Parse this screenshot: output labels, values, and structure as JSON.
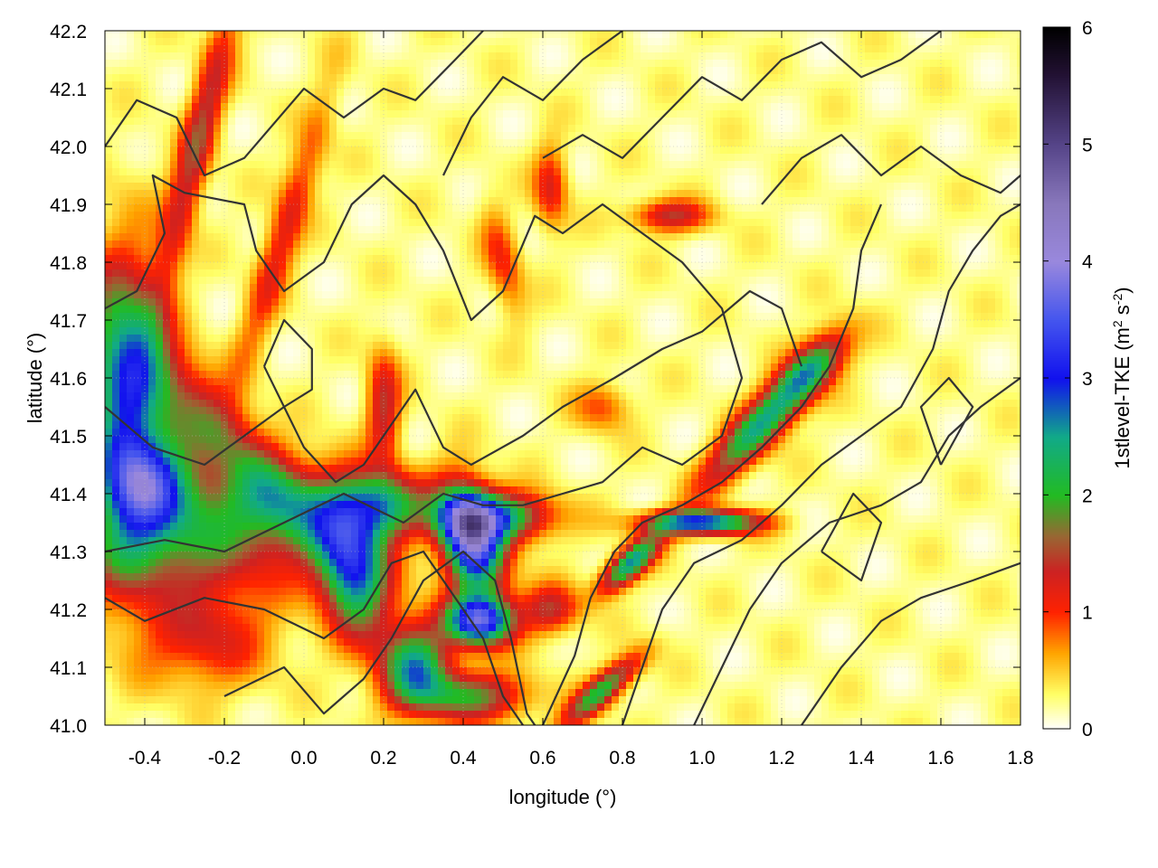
{
  "chart_data": {
    "type": "heatmap",
    "title": "",
    "xlabel": "longitude (°)",
    "ylabel": "latitude (°)",
    "xlim": [
      -0.5,
      1.8
    ],
    "ylim": [
      41.0,
      42.2
    ],
    "x_ticks": [
      "-0.4",
      "-0.2",
      "0.0",
      "0.2",
      "0.4",
      "0.6",
      "0.8",
      "1.0",
      "1.2",
      "1.4",
      "1.6",
      "1.8"
    ],
    "x_tick_values": [
      -0.4,
      -0.2,
      0.0,
      0.2,
      0.4,
      0.6,
      0.8,
      1.0,
      1.2,
      1.4,
      1.6,
      1.8
    ],
    "y_ticks": [
      "41.0",
      "41.1",
      "41.2",
      "41.3",
      "41.4",
      "41.5",
      "41.6",
      "41.7",
      "41.8",
      "41.9",
      "42.0",
      "42.1",
      "42.2"
    ],
    "y_tick_values": [
      41.0,
      41.1,
      41.2,
      41.3,
      41.4,
      41.5,
      41.6,
      41.7,
      41.8,
      41.9,
      42.0,
      42.1,
      42.2
    ],
    "grid": true,
    "colorbar": {
      "label_main": "1stlevel-TKE (m",
      "label_sup1": "2",
      "label_mid": " s",
      "label_sup2": "-2",
      "label_end": ")",
      "range": [
        0,
        6
      ],
      "ticks": [
        "0",
        "1",
        "2",
        "3",
        "4",
        "5",
        "6"
      ],
      "tick_values": [
        0,
        1,
        2,
        3,
        4,
        5,
        6
      ],
      "colors": [
        {
          "v": 0.0,
          "c": "#ffffff"
        },
        {
          "v": 0.3,
          "c": "#ffff66"
        },
        {
          "v": 0.65,
          "c": "#ffa500"
        },
        {
          "v": 1.0,
          "c": "#ff2200"
        },
        {
          "v": 1.35,
          "c": "#cc2222"
        },
        {
          "v": 1.65,
          "c": "#996633"
        },
        {
          "v": 2.0,
          "c": "#22bb22"
        },
        {
          "v": 2.5,
          "c": "#11aa88"
        },
        {
          "v": 3.0,
          "c": "#1111ee"
        },
        {
          "v": 3.5,
          "c": "#4455ee"
        },
        {
          "v": 4.0,
          "c": "#9988dd"
        },
        {
          "v": 4.5,
          "c": "#8877bb"
        },
        {
          "v": 5.0,
          "c": "#554488"
        },
        {
          "v": 5.6,
          "c": "#221133"
        },
        {
          "v": 6.0,
          "c": "#000000"
        }
      ]
    },
    "features": [
      {
        "lon": -0.45,
        "lat": 41.55,
        "sx": 0.07,
        "sy": 0.17,
        "ang": 0,
        "amp": 2.4
      },
      {
        "lon": -0.38,
        "lat": 41.42,
        "sx": 0.08,
        "sy": 0.06,
        "ang": 0,
        "amp": 2.2
      },
      {
        "lon": -0.2,
        "lat": 41.5,
        "sx": 0.25,
        "sy": 0.05,
        "ang": -35,
        "amp": 1.3
      },
      {
        "lon": -0.3,
        "lat": 41.3,
        "sx": 0.2,
        "sy": 0.06,
        "ang": 0,
        "amp": 1.3
      },
      {
        "lon": -0.1,
        "lat": 41.38,
        "sx": 0.15,
        "sy": 0.05,
        "ang": 0,
        "amp": 1.2
      },
      {
        "lon": -0.25,
        "lat": 41.15,
        "sx": 0.12,
        "sy": 0.06,
        "ang": 0,
        "amp": 1.0
      },
      {
        "lon": 0.12,
        "lat": 41.28,
        "sx": 0.06,
        "sy": 0.09,
        "ang": 20,
        "amp": 2.5
      },
      {
        "lon": 0.2,
        "lat": 41.38,
        "sx": 0.07,
        "sy": 0.04,
        "ang": 0,
        "amp": 2.0
      },
      {
        "lon": 0.42,
        "lat": 41.32,
        "sx": 0.05,
        "sy": 0.07,
        "ang": 30,
        "amp": 3.6
      },
      {
        "lon": 0.48,
        "lat": 41.36,
        "sx": 0.1,
        "sy": 0.03,
        "ang": 0,
        "amp": 2.2
      },
      {
        "lon": 0.44,
        "lat": 41.18,
        "sx": 0.06,
        "sy": 0.03,
        "ang": 0,
        "amp": 3.2
      },
      {
        "lon": 0.28,
        "lat": 41.1,
        "sx": 0.06,
        "sy": 0.05,
        "ang": 0,
        "amp": 2.2
      },
      {
        "lon": 0.42,
        "lat": 41.05,
        "sx": 0.1,
        "sy": 0.03,
        "ang": 0,
        "amp": 1.6
      },
      {
        "lon": 0.82,
        "lat": 41.28,
        "sx": 0.06,
        "sy": 0.02,
        "ang": 30,
        "amp": 2.4
      },
      {
        "lon": 1.0,
        "lat": 41.35,
        "sx": 0.1,
        "sy": 0.015,
        "ang": 0,
        "amp": 2.8
      },
      {
        "lon": 1.15,
        "lat": 41.52,
        "sx": 0.12,
        "sy": 0.03,
        "ang": 35,
        "amp": 2.2
      },
      {
        "lon": 1.28,
        "lat": 41.62,
        "sx": 0.07,
        "sy": 0.03,
        "ang": 30,
        "amp": 1.5
      },
      {
        "lon": 0.75,
        "lat": 41.06,
        "sx": 0.08,
        "sy": 0.02,
        "ang": 30,
        "amp": 1.9
      },
      {
        "lon": 0.62,
        "lat": 41.2,
        "sx": 0.05,
        "sy": 0.03,
        "ang": 0,
        "amp": 1.2
      },
      {
        "lon": -0.27,
        "lat": 42.0,
        "sx": 0.03,
        "sy": 0.2,
        "ang": -20,
        "amp": 1.3
      },
      {
        "lon": -0.05,
        "lat": 41.85,
        "sx": 0.03,
        "sy": 0.18,
        "ang": -25,
        "amp": 1.0
      },
      {
        "lon": 0.2,
        "lat": 41.55,
        "sx": 0.03,
        "sy": 0.07,
        "ang": 0,
        "amp": 1.2
      },
      {
        "lon": 0.62,
        "lat": 41.93,
        "sx": 0.03,
        "sy": 0.05,
        "ang": 0,
        "amp": 1.0
      },
      {
        "lon": 0.92,
        "lat": 41.88,
        "sx": 0.07,
        "sy": 0.02,
        "ang": 0,
        "amp": 1.2
      },
      {
        "lon": 0.5,
        "lat": 41.8,
        "sx": 0.03,
        "sy": 0.07,
        "ang": 20,
        "amp": 0.8
      },
      {
        "lon": 0.75,
        "lat": 41.55,
        "sx": 0.05,
        "sy": 0.03,
        "ang": 0,
        "amp": 0.7
      }
    ],
    "contours": [
      [
        [
          -0.5,
          42.0
        ],
        [
          -0.42,
          42.08
        ],
        [
          -0.32,
          42.05
        ],
        [
          -0.25,
          41.95
        ],
        [
          -0.15,
          41.98
        ],
        [
          0.0,
          42.1
        ],
        [
          0.1,
          42.05
        ],
        [
          0.2,
          42.1
        ],
        [
          0.28,
          42.08
        ],
        [
          0.38,
          42.15
        ],
        [
          0.45,
          42.2
        ]
      ],
      [
        [
          -0.5,
          41.72
        ],
        [
          -0.42,
          41.75
        ],
        [
          -0.35,
          41.85
        ],
        [
          -0.38,
          41.95
        ],
        [
          -0.3,
          41.92
        ],
        [
          -0.15,
          41.9
        ],
        [
          -0.12,
          41.82
        ],
        [
          -0.05,
          41.75
        ],
        [
          0.05,
          41.8
        ],
        [
          0.12,
          41.9
        ],
        [
          0.2,
          41.95
        ],
        [
          0.28,
          41.9
        ],
        [
          0.35,
          41.82
        ],
        [
          0.42,
          41.7
        ],
        [
          0.5,
          41.75
        ],
        [
          0.58,
          41.88
        ],
        [
          0.65,
          41.85
        ],
        [
          0.75,
          41.9
        ],
        [
          0.85,
          41.85
        ],
        [
          0.95,
          41.8
        ],
        [
          1.05,
          41.72
        ],
        [
          1.1,
          41.6
        ],
        [
          1.05,
          41.5
        ],
        [
          0.95,
          41.45
        ],
        [
          0.85,
          41.48
        ],
        [
          0.75,
          41.42
        ],
        [
          0.65,
          41.4
        ],
        [
          0.55,
          41.38
        ],
        [
          0.45,
          41.38
        ],
        [
          0.35,
          41.4
        ],
        [
          0.25,
          41.35
        ],
        [
          0.1,
          41.4
        ],
        [
          -0.05,
          41.35
        ],
        [
          -0.2,
          41.3
        ],
        [
          -0.35,
          41.32
        ],
        [
          -0.5,
          41.3
        ]
      ],
      [
        [
          -0.5,
          41.22
        ],
        [
          -0.4,
          41.18
        ],
        [
          -0.25,
          41.22
        ],
        [
          -0.1,
          41.2
        ],
        [
          0.05,
          41.15
        ],
        [
          0.15,
          41.2
        ],
        [
          0.22,
          41.28
        ],
        [
          0.3,
          41.3
        ],
        [
          0.38,
          41.22
        ],
        [
          0.45,
          41.15
        ],
        [
          0.5,
          41.05
        ],
        [
          0.55,
          41.0
        ]
      ],
      [
        [
          -0.5,
          41.55
        ],
        [
          -0.38,
          41.48
        ],
        [
          -0.25,
          41.45
        ],
        [
          -0.15,
          41.5
        ],
        [
          -0.05,
          41.55
        ],
        [
          0.0,
          41.48
        ],
        [
          0.08,
          41.42
        ],
        [
          0.15,
          41.45
        ],
        [
          0.2,
          41.5
        ],
        [
          0.28,
          41.58
        ],
        [
          0.35,
          41.48
        ],
        [
          0.42,
          41.45
        ],
        [
          0.55,
          41.5
        ],
        [
          0.65,
          41.55
        ],
        [
          0.78,
          41.6
        ],
        [
          0.9,
          41.65
        ],
        [
          1.0,
          41.68
        ],
        [
          1.12,
          41.75
        ],
        [
          1.2,
          41.72
        ],
        [
          1.25,
          41.62
        ]
      ],
      [
        [
          -0.2,
          41.05
        ],
        [
          -0.05,
          41.1
        ],
        [
          0.05,
          41.02
        ],
        [
          0.15,
          41.08
        ],
        [
          0.22,
          41.15
        ],
        [
          0.3,
          41.25
        ],
        [
          0.4,
          41.3
        ],
        [
          0.48,
          41.25
        ],
        [
          0.52,
          41.15
        ],
        [
          0.56,
          41.02
        ],
        [
          0.58,
          41.0
        ]
      ],
      [
        [
          0.6,
          41.0
        ],
        [
          0.68,
          41.12
        ],
        [
          0.72,
          41.22
        ],
        [
          0.78,
          41.3
        ],
        [
          0.85,
          41.35
        ],
        [
          0.95,
          41.38
        ],
        [
          1.05,
          41.42
        ],
        [
          1.15,
          41.48
        ],
        [
          1.25,
          41.55
        ],
        [
          1.32,
          41.62
        ],
        [
          1.38,
          41.72
        ],
        [
          1.4,
          41.82
        ],
        [
          1.45,
          41.9
        ]
      ],
      [
        [
          0.8,
          41.0
        ],
        [
          0.85,
          41.1
        ],
        [
          0.9,
          41.2
        ],
        [
          0.98,
          41.28
        ],
        [
          1.1,
          41.32
        ],
        [
          1.2,
          41.38
        ],
        [
          1.3,
          41.45
        ],
        [
          1.4,
          41.5
        ],
        [
          1.5,
          41.55
        ],
        [
          1.58,
          41.65
        ],
        [
          1.62,
          41.75
        ],
        [
          1.68,
          41.82
        ],
        [
          1.75,
          41.88
        ],
        [
          1.8,
          41.9
        ]
      ],
      [
        [
          0.98,
          41.0
        ],
        [
          1.05,
          41.1
        ],
        [
          1.12,
          41.2
        ],
        [
          1.2,
          41.28
        ],
        [
          1.32,
          41.35
        ],
        [
          1.45,
          41.38
        ],
        [
          1.55,
          41.42
        ],
        [
          1.62,
          41.5
        ],
        [
          1.7,
          41.55
        ],
        [
          1.8,
          41.6
        ]
      ],
      [
        [
          1.25,
          41.0
        ],
        [
          1.35,
          41.1
        ],
        [
          1.45,
          41.18
        ],
        [
          1.55,
          41.22
        ],
        [
          1.68,
          41.25
        ],
        [
          1.8,
          41.28
        ]
      ],
      [
        [
          0.35,
          41.95
        ],
        [
          0.42,
          42.05
        ],
        [
          0.5,
          42.12
        ],
        [
          0.6,
          42.08
        ],
        [
          0.7,
          42.15
        ],
        [
          0.8,
          42.2
        ]
      ],
      [
        [
          0.6,
          41.98
        ],
        [
          0.7,
          42.02
        ],
        [
          0.8,
          41.98
        ],
        [
          0.9,
          42.05
        ],
        [
          1.0,
          42.12
        ],
        [
          1.1,
          42.08
        ],
        [
          1.2,
          42.15
        ],
        [
          1.3,
          42.18
        ],
        [
          1.4,
          42.12
        ],
        [
          1.5,
          42.15
        ],
        [
          1.6,
          42.2
        ]
      ],
      [
        [
          1.15,
          41.9
        ],
        [
          1.25,
          41.98
        ],
        [
          1.35,
          42.02
        ],
        [
          1.45,
          41.95
        ],
        [
          1.55,
          42.0
        ],
        [
          1.65,
          41.95
        ],
        [
          1.75,
          41.92
        ],
        [
          1.8,
          41.95
        ]
      ],
      [
        [
          -0.1,
          41.62
        ],
        [
          -0.05,
          41.7
        ],
        [
          0.02,
          41.65
        ],
        [
          0.02,
          41.58
        ],
        [
          -0.05,
          41.55
        ],
        [
          -0.1,
          41.62
        ]
      ],
      [
        [
          1.6,
          41.45
        ],
        [
          1.68,
          41.55
        ],
        [
          1.62,
          41.6
        ],
        [
          1.55,
          41.55
        ],
        [
          1.6,
          41.45
        ]
      ],
      [
        [
          1.3,
          41.3
        ],
        [
          1.38,
          41.4
        ],
        [
          1.45,
          41.35
        ],
        [
          1.4,
          41.25
        ],
        [
          1.3,
          41.3
        ]
      ]
    ]
  }
}
